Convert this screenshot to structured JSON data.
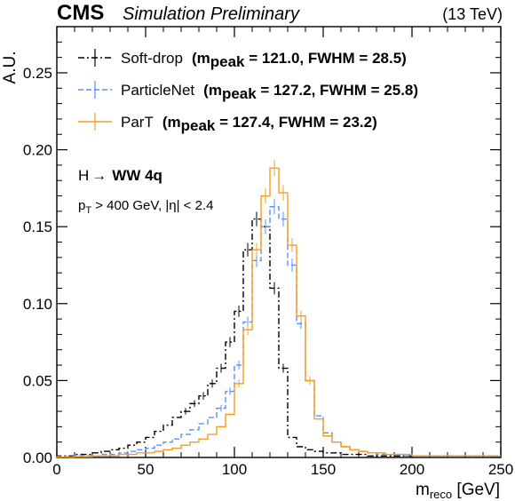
{
  "header": {
    "experiment": "CMS",
    "status": "Simulation Preliminary",
    "energy": "(13 TeV)"
  },
  "annotation": {
    "process_a": "H",
    "process_arrow": "→",
    "process_b": "WW 4q",
    "cut_pt_main": "p",
    "cut_pt_sub": "T",
    "cut_pt_rest": " > 400 GeV,  |η| < 2.4"
  },
  "chart_data": {
    "type": "histogram",
    "xlabel_main": "m",
    "xlabel_sub": "reco",
    "xlabel_unit": " [GeV]",
    "ylabel": "A.U.",
    "xlim": [
      0,
      250
    ],
    "ylim": [
      0,
      0.28
    ],
    "x_ticks": [
      0,
      50,
      100,
      150,
      200,
      250
    ],
    "x_tick_labels": [
      "0",
      "50",
      "100",
      "150",
      "200",
      "250"
    ],
    "y_ticks": [
      0,
      0.05,
      0.1,
      0.15,
      0.2,
      0.25
    ],
    "y_tick_labels": [
      "0.00",
      "0.05",
      "0.10",
      "0.15",
      "0.20",
      "0.25"
    ],
    "bin_width": 5,
    "bin_edges_start": 0,
    "legend_position": "top-left",
    "series": [
      {
        "name": "Soft-drop",
        "legend_main": "Soft-drop",
        "legend_m": "m",
        "legend_sub": "peak",
        "legend_rest": " = 121.0, FWHM = 28.5)",
        "legend_open": "(",
        "color": "#000000",
        "style": "dashdot",
        "values": [
          0.001,
          0.001,
          0.002,
          0.002,
          0.003,
          0.004,
          0.005,
          0.006,
          0.008,
          0.01,
          0.013,
          0.017,
          0.021,
          0.026,
          0.03,
          0.035,
          0.04,
          0.048,
          0.058,
          0.075,
          0.095,
          0.135,
          0.155,
          0.15,
          0.11,
          0.058,
          0.013,
          0.007,
          0.005,
          0.004,
          0.003,
          0.003,
          0.002,
          0.002,
          0.002,
          0.001,
          0.001,
          0.001,
          0.001,
          0.001,
          0.001,
          0.001,
          0.001,
          0.001,
          0.001,
          0.001,
          0.001,
          0.001,
          0.001,
          0.001
        ]
      },
      {
        "name": "ParticleNet",
        "legend_main": "ParticleNet",
        "legend_m": "m",
        "legend_sub": "peak",
        "legend_rest": " = 127.2, FWHM = 25.8)",
        "legend_open": "(",
        "color": "#5790fc",
        "style": "dashed",
        "values": [
          0.0005,
          0.0005,
          0.001,
          0.001,
          0.001,
          0.002,
          0.002,
          0.003,
          0.004,
          0.005,
          0.006,
          0.008,
          0.01,
          0.012,
          0.015,
          0.018,
          0.022,
          0.026,
          0.032,
          0.043,
          0.06,
          0.088,
          0.128,
          0.15,
          0.163,
          0.155,
          0.125,
          0.087,
          0.05,
          0.027,
          0.016,
          0.01,
          0.007,
          0.005,
          0.004,
          0.003,
          0.002,
          0.002,
          0.002,
          0.001,
          0.001,
          0.001,
          0.001,
          0.001,
          0.001,
          0.001,
          0.001,
          0.001,
          0.001,
          0.001
        ]
      },
      {
        "name": "ParT",
        "legend_main": "ParT",
        "legend_m": "m",
        "legend_sub": "peak",
        "legend_rest": " = 127.4, FWHM = 23.2)",
        "legend_open": "(",
        "color": "#f89c20",
        "style": "solid",
        "values": [
          0.0003,
          0.0003,
          0.0005,
          0.0005,
          0.001,
          0.001,
          0.001,
          0.002,
          0.002,
          0.003,
          0.003,
          0.004,
          0.005,
          0.006,
          0.008,
          0.01,
          0.012,
          0.015,
          0.02,
          0.028,
          0.048,
          0.083,
          0.135,
          0.17,
          0.188,
          0.172,
          0.138,
          0.092,
          0.05,
          0.025,
          0.014,
          0.01,
          0.007,
          0.005,
          0.004,
          0.003,
          0.003,
          0.002,
          0.002,
          0.002,
          0.001,
          0.001,
          0.001,
          0.001,
          0.001,
          0.001,
          0.001,
          0.001,
          0.001,
          0.001
        ]
      }
    ]
  }
}
